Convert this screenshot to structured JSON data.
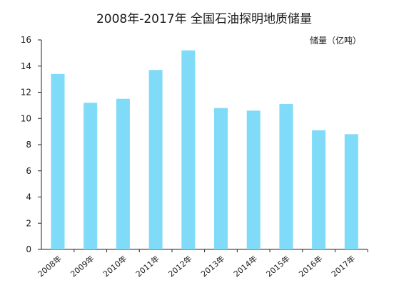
{
  "chart_data": {
    "type": "bar",
    "title": "2008年-2017年  全国石油探明地质储量",
    "ylabel": "储量（亿吨）",
    "xlabel": "",
    "categories": [
      "2008年",
      "2009年",
      "2010年",
      "2011年",
      "2012年",
      "2013年",
      "2014年",
      "2015年",
      "2016年",
      "2017年"
    ],
    "values": [
      13.4,
      11.2,
      11.5,
      13.7,
      15.2,
      10.8,
      10.6,
      11.1,
      9.1,
      8.8
    ],
    "ylim": [
      0,
      16
    ],
    "yticks": [
      0,
      2,
      4,
      6,
      8,
      10,
      12,
      14,
      16
    ],
    "grid": false,
    "legend": "none",
    "bar_color": "#7fdbf7"
  }
}
